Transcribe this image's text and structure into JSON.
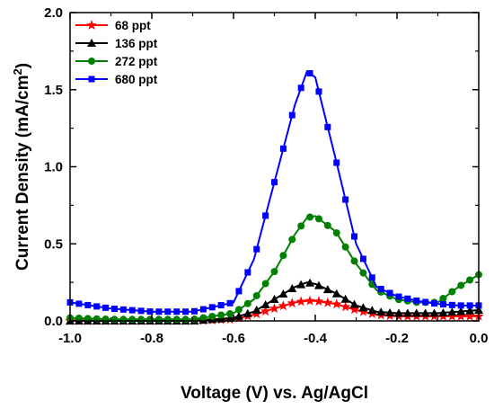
{
  "chart_data": {
    "type": "line",
    "xlabel": "Voltage (V) vs. Ag/AgCl",
    "ylabel_main": "Current Density (mA/cm",
    "ylabel_sup": "2",
    "ylabel_close": ")",
    "xlim": [
      -1.0,
      0.0
    ],
    "ylim": [
      0.0,
      2.0
    ],
    "x_ticks": [
      -1.0,
      -0.8,
      -0.6,
      -0.4,
      -0.2,
      0.0
    ],
    "x_tick_labels": [
      "-1.0",
      "-0.8",
      "-0.6",
      "-0.4",
      "-0.2",
      "0.0"
    ],
    "y_ticks": [
      0.0,
      0.5,
      1.0,
      1.5,
      2.0
    ],
    "y_tick_labels": [
      "0.0",
      "0.5",
      "1.0",
      "1.5",
      "2.0"
    ],
    "grid": false,
    "legend_position": "top-left",
    "series": [
      {
        "name": "68 ppt",
        "color": "#ff0000",
        "marker": "star",
        "x": [
          -1.0,
          -0.9,
          -0.8,
          -0.7,
          -0.6,
          -0.55,
          -0.5,
          -0.45,
          -0.42,
          -0.4,
          -0.35,
          -0.3,
          -0.25,
          -0.2,
          -0.1,
          0.0
        ],
        "y": [
          0.0,
          0.0,
          0.0,
          0.0,
          0.01,
          0.04,
          0.08,
          0.12,
          0.13,
          0.13,
          0.11,
          0.07,
          0.04,
          0.03,
          0.03,
          0.03
        ]
      },
      {
        "name": "136 ppt",
        "color": "#000000",
        "marker": "triangle",
        "x": [
          -1.0,
          -0.9,
          -0.8,
          -0.7,
          -0.6,
          -0.55,
          -0.5,
          -0.45,
          -0.42,
          -0.4,
          -0.35,
          -0.3,
          -0.25,
          -0.2,
          -0.1,
          0.0
        ],
        "y": [
          0.0,
          0.0,
          0.0,
          0.0,
          0.02,
          0.06,
          0.14,
          0.22,
          0.25,
          0.24,
          0.18,
          0.1,
          0.06,
          0.05,
          0.05,
          0.07
        ]
      },
      {
        "name": "272 ppt",
        "color": "#008000",
        "marker": "circle",
        "x": [
          -1.0,
          -0.9,
          -0.8,
          -0.7,
          -0.6,
          -0.55,
          -0.5,
          -0.45,
          -0.42,
          -0.4,
          -0.35,
          -0.3,
          -0.25,
          -0.2,
          -0.15,
          -0.1,
          -0.05,
          0.0
        ],
        "y": [
          0.02,
          0.01,
          0.01,
          0.01,
          0.05,
          0.14,
          0.32,
          0.56,
          0.67,
          0.68,
          0.58,
          0.37,
          0.2,
          0.14,
          0.12,
          0.12,
          0.22,
          0.3
        ]
      },
      {
        "name": "680 ppt",
        "color": "#0000ff",
        "marker": "square",
        "x": [
          -1.0,
          -0.9,
          -0.8,
          -0.7,
          -0.6,
          -0.55,
          -0.5,
          -0.45,
          -0.42,
          -0.4,
          -0.35,
          -0.3,
          -0.25,
          -0.2,
          -0.15,
          -0.1,
          -0.05,
          0.0
        ],
        "y": [
          0.12,
          0.08,
          0.06,
          0.06,
          0.12,
          0.4,
          0.9,
          1.4,
          1.62,
          1.58,
          1.05,
          0.5,
          0.22,
          0.16,
          0.13,
          0.11,
          0.1,
          0.1
        ]
      }
    ]
  }
}
